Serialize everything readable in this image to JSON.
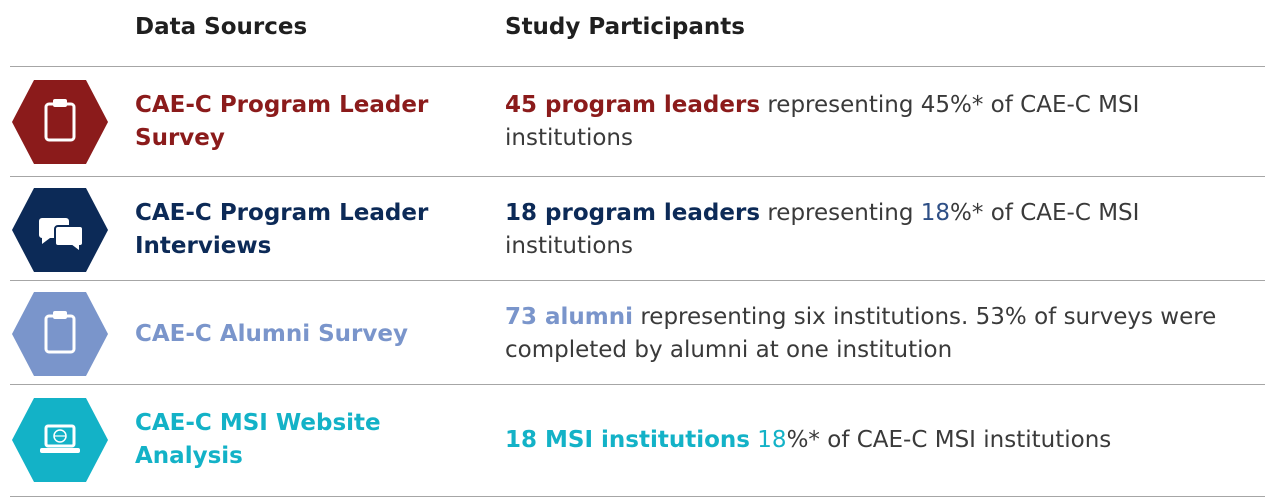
{
  "header": {
    "sources": "Data Sources",
    "participants": "Study Participants"
  },
  "rows": [
    {
      "source": "CAE-C Program Leader Survey",
      "participants": [
        "45 program leaders",
        " representing 45%* of CAE-C MSI institutions"
      ]
    },
    {
      "source": "CAE-C Program Leader Interviews",
      "participants": [
        "18 program leaders",
        " representing ",
        "18",
        "%* of CAE-C MSI institutions"
      ]
    },
    {
      "source": "CAE-C Alumni Survey",
      "participants": [
        "73 alumni",
        " representing six institutions. 53% of surveys were completed by alumni at one institution"
      ]
    },
    {
      "source": "CAE-C MSI Website Analysis",
      "participants": [
        "18 MSI institutions",
        " ",
        "18",
        "%* of CAE-C MSI institutions"
      ]
    }
  ]
}
